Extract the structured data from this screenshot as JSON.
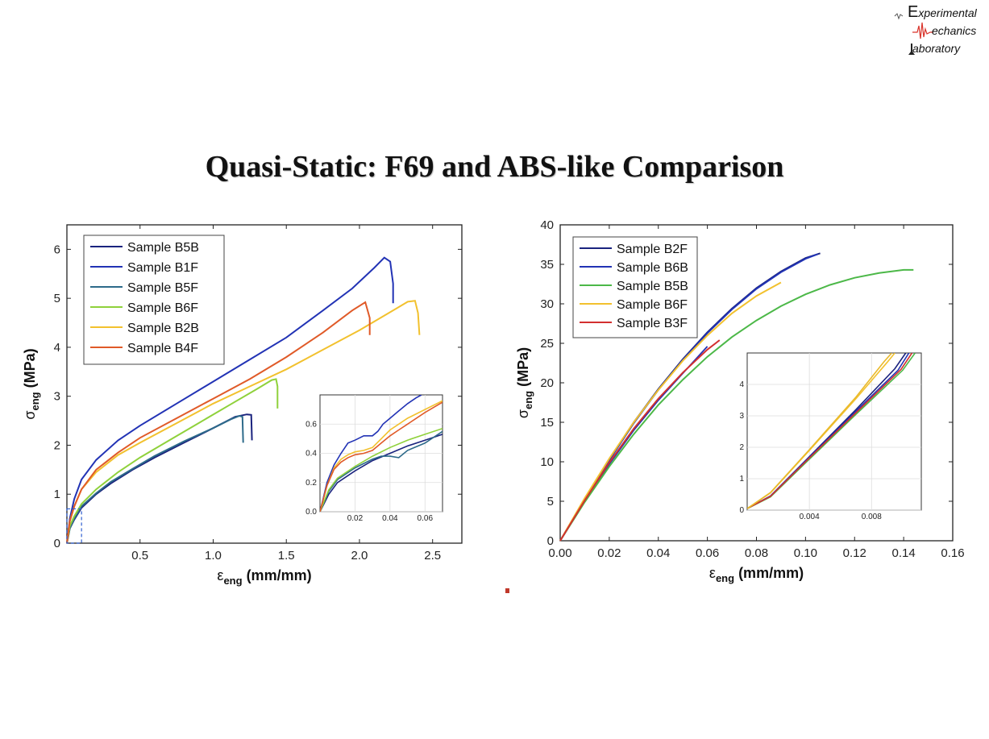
{
  "logo": {
    "line1_big": "E",
    "line1_rest": "xperimental",
    "line2_big": "M",
    "line2_rest": "echanics",
    "line3_big": "L",
    "line3_rest": "aboratory",
    "accent_color": "#d9342b"
  },
  "slide": {
    "title": "Quasi-Static: F69 and ABS-like Comparison"
  },
  "chart_data": [
    {
      "type": "line",
      "name": "F69",
      "xlabel_symbol": "ε",
      "xlabel_sub": "eng",
      "xlabel_units": "(mm/mm)",
      "ylabel_symbol": "σ",
      "ylabel_sub": "eng",
      "ylabel_units": "(MPa)",
      "xlim": [
        0,
        2.7
      ],
      "ylim": [
        0,
        6.5
      ],
      "xticks": [
        0.5,
        1.0,
        1.5,
        2.0,
        2.5
      ],
      "xtick_labels": [
        "0.5",
        "1.0",
        "1.5",
        "2.0",
        "2.5"
      ],
      "yticks": [
        0,
        1,
        2,
        3,
        4,
        5,
        6
      ],
      "ytick_labels": [
        "0",
        "1",
        "2",
        "3",
        "4",
        "5",
        "6"
      ],
      "legend_position": "top-left",
      "series": [
        {
          "name": "Sample B5B",
          "color": "#1a237e",
          "x": [
            0,
            0.02,
            0.05,
            0.1,
            0.2,
            0.3,
            0.45,
            0.6,
            0.8,
            1.0,
            1.15,
            1.23,
            1.26,
            1.265
          ],
          "y": [
            0,
            0.3,
            0.48,
            0.72,
            1.0,
            1.22,
            1.5,
            1.75,
            2.05,
            2.35,
            2.58,
            2.63,
            2.62,
            2.1
          ]
        },
        {
          "name": "Sample B1F",
          "color": "#2233b5",
          "x": [
            0,
            0.02,
            0.05,
            0.1,
            0.2,
            0.35,
            0.5,
            0.75,
            1.0,
            1.25,
            1.5,
            1.75,
            1.95,
            2.1,
            2.17,
            2.21,
            2.23,
            2.23
          ],
          "y": [
            0,
            0.5,
            0.9,
            1.3,
            1.7,
            2.1,
            2.4,
            2.85,
            3.3,
            3.75,
            4.2,
            4.75,
            5.2,
            5.62,
            5.83,
            5.75,
            5.3,
            4.9
          ]
        },
        {
          "name": "Sample B5F",
          "color": "#2d6a8a",
          "x": [
            0,
            0.02,
            0.05,
            0.1,
            0.2,
            0.3,
            0.45,
            0.6,
            0.8,
            1.0,
            1.12,
            1.18,
            1.2,
            1.205
          ],
          "y": [
            0,
            0.3,
            0.5,
            0.75,
            1.02,
            1.25,
            1.52,
            1.78,
            2.08,
            2.35,
            2.53,
            2.6,
            2.58,
            2.05
          ]
        },
        {
          "name": "Sample B6F",
          "color": "#8fd13b",
          "x": [
            0,
            0.02,
            0.05,
            0.1,
            0.2,
            0.35,
            0.5,
            0.7,
            0.9,
            1.1,
            1.3,
            1.4,
            1.43,
            1.44,
            1.44
          ],
          "y": [
            0,
            0.35,
            0.55,
            0.8,
            1.1,
            1.45,
            1.75,
            2.1,
            2.45,
            2.8,
            3.15,
            3.33,
            3.35,
            3.2,
            2.75
          ]
        },
        {
          "name": "Sample B2B",
          "color": "#f2c12e",
          "x": [
            0,
            0.02,
            0.05,
            0.1,
            0.2,
            0.35,
            0.5,
            0.75,
            1.0,
            1.25,
            1.5,
            1.75,
            2.0,
            2.2,
            2.33,
            2.38,
            2.4,
            2.41
          ],
          "y": [
            0,
            0.45,
            0.75,
            1.1,
            1.45,
            1.8,
            2.05,
            2.45,
            2.85,
            3.2,
            3.55,
            3.95,
            4.35,
            4.7,
            4.93,
            4.95,
            4.7,
            4.25
          ]
        },
        {
          "name": "Sample B4F",
          "color": "#e05a28",
          "x": [
            0,
            0.02,
            0.05,
            0.1,
            0.2,
            0.35,
            0.5,
            0.75,
            1.0,
            1.25,
            1.5,
            1.75,
            1.95,
            2.04,
            2.07,
            2.07
          ],
          "y": [
            0,
            0.45,
            0.75,
            1.1,
            1.5,
            1.85,
            2.15,
            2.55,
            2.95,
            3.35,
            3.8,
            4.3,
            4.75,
            4.92,
            4.6,
            4.25
          ]
        }
      ],
      "inset": {
        "xlim": [
          0,
          0.07
        ],
        "ylim": [
          0,
          0.8
        ],
        "xticks": [
          0.02,
          0.04,
          0.06
        ],
        "xtick_labels": [
          "0.02",
          "0.04",
          "0.06"
        ],
        "yticks": [
          0.0,
          0.2,
          0.4,
          0.6
        ],
        "ytick_labels": [
          "0.0",
          "0.2",
          "0.4",
          "0.6"
        ],
        "series": [
          {
            "color": "#1a237e",
            "x": [
              0,
              0.005,
              0.01,
              0.02,
              0.03,
              0.04,
              0.05,
              0.06,
              0.07
            ],
            "y": [
              0,
              0.12,
              0.2,
              0.28,
              0.35,
              0.4,
              0.45,
              0.49,
              0.53
            ]
          },
          {
            "color": "#2233b5",
            "x": [
              0,
              0.004,
              0.008,
              0.012,
              0.016,
              0.02,
              0.025,
              0.03,
              0.033,
              0.036,
              0.04,
              0.045,
              0.05,
              0.055,
              0.058
            ],
            "y": [
              0,
              0.2,
              0.32,
              0.4,
              0.47,
              0.49,
              0.52,
              0.52,
              0.55,
              0.6,
              0.64,
              0.69,
              0.74,
              0.78,
              0.8
            ]
          },
          {
            "color": "#2d6a8a",
            "x": [
              0,
              0.005,
              0.01,
              0.02,
              0.03,
              0.035,
              0.04,
              0.045,
              0.05,
              0.06,
              0.07
            ],
            "y": [
              0,
              0.14,
              0.22,
              0.3,
              0.36,
              0.38,
              0.38,
              0.37,
              0.42,
              0.47,
              0.55
            ]
          },
          {
            "color": "#8fd13b",
            "x": [
              0,
              0.005,
              0.01,
              0.02,
              0.03,
              0.04,
              0.05,
              0.06,
              0.07
            ],
            "y": [
              0,
              0.15,
              0.23,
              0.31,
              0.38,
              0.44,
              0.49,
              0.53,
              0.57
            ]
          },
          {
            "color": "#f2c12e",
            "x": [
              0,
              0.004,
              0.008,
              0.012,
              0.016,
              0.02,
              0.025,
              0.03,
              0.035,
              0.04,
              0.045,
              0.05,
              0.06,
              0.07
            ],
            "y": [
              0,
              0.18,
              0.3,
              0.36,
              0.39,
              0.41,
              0.42,
              0.44,
              0.5,
              0.56,
              0.6,
              0.64,
              0.7,
              0.76
            ]
          },
          {
            "color": "#e05a28",
            "x": [
              0,
              0.004,
              0.008,
              0.012,
              0.016,
              0.02,
              0.025,
              0.03,
              0.035,
              0.04,
              0.045,
              0.05,
              0.06,
              0.07
            ],
            "y": [
              0,
              0.18,
              0.29,
              0.34,
              0.37,
              0.39,
              0.4,
              0.42,
              0.47,
              0.52,
              0.56,
              0.6,
              0.68,
              0.75
            ]
          }
        ]
      }
    },
    {
      "type": "line",
      "name": "ABS-like",
      "xlabel_symbol": "ε",
      "xlabel_sub": "eng",
      "xlabel_units": "(mm/mm)",
      "ylabel_symbol": "σ",
      "ylabel_sub": "eng",
      "ylabel_units": "(MPa)",
      "xlim": [
        0,
        0.16
      ],
      "ylim": [
        0,
        40
      ],
      "xticks": [
        0.0,
        0.02,
        0.04,
        0.06,
        0.08,
        0.1,
        0.12,
        0.14,
        0.16
      ],
      "xtick_labels": [
        "0.00",
        "0.02",
        "0.04",
        "0.06",
        "0.08",
        "0.10",
        "0.12",
        "0.14",
        "0.16"
      ],
      "yticks": [
        0,
        5,
        10,
        15,
        20,
        25,
        30,
        35,
        40
      ],
      "ytick_labels": [
        "0",
        "5",
        "10",
        "15",
        "20",
        "25",
        "30",
        "35",
        "40"
      ],
      "legend_position": "top-left",
      "series": [
        {
          "name": "Sample B2F",
          "color": "#1a237e",
          "x": [
            0,
            0.01,
            0.02,
            0.03,
            0.04,
            0.05,
            0.06,
            0.07,
            0.08,
            0.09,
            0.1,
            0.106
          ],
          "y": [
            0,
            5.3,
            10.3,
            15.0,
            19.2,
            23.0,
            26.4,
            29.4,
            32.0,
            34.1,
            35.8,
            36.4
          ]
        },
        {
          "name": "Sample B6B",
          "color": "#2233b5",
          "x": [
            0,
            0.01,
            0.02,
            0.03,
            0.04,
            0.05,
            0.06,
            0.07,
            0.08,
            0.09,
            0.1,
            0.105
          ],
          "y": [
            0,
            5.2,
            10.2,
            14.9,
            19.1,
            22.9,
            26.3,
            29.3,
            31.9,
            34.0,
            35.7,
            36.3
          ]
        },
        {
          "name": "Sample B5B",
          "color": "#4cb848",
          "x": [
            0,
            0.01,
            0.02,
            0.03,
            0.04,
            0.05,
            0.06,
            0.07,
            0.08,
            0.09,
            0.1,
            0.11,
            0.12,
            0.13,
            0.14,
            0.144
          ],
          "y": [
            0,
            4.9,
            9.4,
            13.5,
            17.2,
            20.4,
            23.3,
            25.8,
            27.9,
            29.7,
            31.2,
            32.4,
            33.3,
            33.9,
            34.3,
            34.3
          ]
        },
        {
          "name": "Sample B6F",
          "color": "#f2c12e",
          "x": [
            0,
            0.01,
            0.02,
            0.03,
            0.04,
            0.05,
            0.06,
            0.07,
            0.08,
            0.09
          ],
          "y": [
            0,
            5.4,
            10.4,
            15.0,
            19.1,
            22.8,
            26.0,
            28.8,
            31.0,
            32.7
          ]
        },
        {
          "name": "Sample B3F",
          "color": "#d32f2f",
          "x": [
            0,
            0.01,
            0.02,
            0.03,
            0.04,
            0.05,
            0.06,
            0.065
          ],
          "y": [
            0,
            5.1,
            9.9,
            14.2,
            18.0,
            21.3,
            24.2,
            25.4
          ]
        }
      ],
      "extra_series": [
        {
          "color": "#2233b5",
          "x": [
            0,
            0.01,
            0.02,
            0.03,
            0.04,
            0.05,
            0.06
          ],
          "y": [
            0,
            5.0,
            9.7,
            14.0,
            17.8,
            21.2,
            24.6
          ]
        }
      ],
      "inset": {
        "xlim": [
          0,
          0.0112
        ],
        "ylim": [
          0,
          5
        ],
        "xticks": [
          0.004,
          0.008
        ],
        "xtick_labels": [
          "0.004",
          "0.008"
        ],
        "yticks": [
          0,
          1,
          2,
          3,
          4
        ],
        "ytick_labels": [
          "0",
          "1",
          "2",
          "3",
          "4"
        ],
        "series": [
          {
            "color": "#1a237e",
            "x": [
              0,
              0.0015,
              0.004,
              0.007,
              0.0095,
              0.0102
            ],
            "y": [
              0.05,
              0.45,
              1.7,
              3.2,
              4.5,
              5.0
            ]
          },
          {
            "color": "#2233b5",
            "x": [
              0,
              0.0015,
              0.004,
              0.007,
              0.0097,
              0.0104
            ],
            "y": [
              0.05,
              0.45,
              1.68,
              3.15,
              4.45,
              5.0
            ]
          },
          {
            "color": "#4cb848",
            "x": [
              0,
              0.0015,
              0.004,
              0.007,
              0.01,
              0.0108
            ],
            "y": [
              0.05,
              0.42,
              1.62,
              3.05,
              4.45,
              5.0
            ]
          },
          {
            "color": "#d32f2f",
            "x": [
              0,
              0.0015,
              0.004,
              0.007,
              0.0099,
              0.0106
            ],
            "y": [
              0.05,
              0.44,
              1.66,
              3.1,
              4.48,
              5.0
            ]
          },
          {
            "color": "#f2c12e",
            "x": [
              0,
              0.0015,
              0.004,
              0.007,
              0.009,
              0.0095
            ],
            "y": [
              0.05,
              0.55,
              1.9,
              3.55,
              4.7,
              5.0
            ]
          },
          {
            "color": "#e9b92a",
            "x": [
              0,
              0.0015,
              0.004,
              0.007,
              0.0088,
              0.0093
            ],
            "y": [
              0.05,
              0.56,
              1.92,
              3.6,
              4.72,
              5.0
            ]
          }
        ]
      }
    }
  ]
}
